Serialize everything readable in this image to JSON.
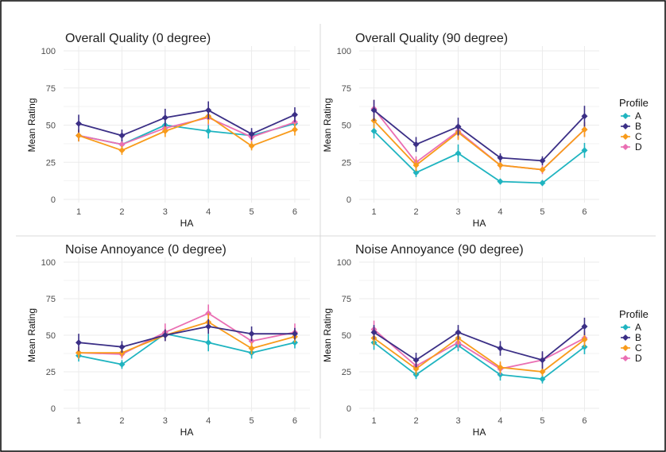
{
  "chart_data": [
    {
      "type": "line",
      "title": "Overall Quality (0 degree)",
      "xlabel": "HA",
      "ylabel": "Mean Rating",
      "x": [
        1,
        2,
        3,
        4,
        5,
        6
      ],
      "ylim": [
        0,
        100
      ],
      "yticks": [
        0,
        25,
        50,
        75,
        100
      ],
      "grid": true,
      "series": [
        {
          "name": "A",
          "values": [
            43,
            37,
            50,
            46,
            43,
            51
          ],
          "err": [
            4,
            3,
            4,
            5,
            3,
            4
          ]
        },
        {
          "name": "B",
          "values": [
            51,
            43,
            55,
            60,
            44,
            57
          ],
          "err": [
            6,
            4,
            6,
            6,
            4,
            5
          ]
        },
        {
          "name": "C",
          "values": [
            43,
            33,
            46,
            56,
            36,
            47
          ],
          "err": [
            4,
            3,
            4,
            5,
            3,
            4
          ]
        },
        {
          "name": "D",
          "values": [
            43,
            37,
            48,
            55,
            42,
            52
          ],
          "err": [
            4,
            3,
            4,
            5,
            4,
            4
          ]
        }
      ]
    },
    {
      "type": "line",
      "title": "Overall Quality (90 degree)",
      "xlabel": "HA",
      "ylabel": "Mean Rating",
      "x": [
        1,
        2,
        3,
        4,
        5,
        6
      ],
      "ylim": [
        0,
        100
      ],
      "yticks": [
        0,
        25,
        50,
        75,
        100
      ],
      "grid": true,
      "series": [
        {
          "name": "A",
          "values": [
            46,
            18,
            31,
            12,
            11,
            33
          ],
          "err": [
            5,
            3,
            6,
            2,
            2,
            5
          ]
        },
        {
          "name": "B",
          "values": [
            60,
            37,
            49,
            28,
            26,
            56
          ],
          "err": [
            7,
            5,
            6,
            3,
            3,
            7
          ]
        },
        {
          "name": "C",
          "values": [
            53,
            23,
            45,
            23,
            20,
            47
          ],
          "err": [
            5,
            4,
            5,
            3,
            2,
            5
          ]
        },
        {
          "name": "D",
          "values": [
            61,
            25,
            46,
            23,
            20,
            47
          ],
          "err": [
            6,
            4,
            5,
            3,
            3,
            5
          ]
        }
      ]
    },
    {
      "type": "line",
      "title": "Noise Annoyance (0 degree)",
      "xlabel": "HA",
      "ylabel": "Mean Rating",
      "x": [
        1,
        2,
        3,
        4,
        5,
        6
      ],
      "ylim": [
        0,
        100
      ],
      "yticks": [
        0,
        25,
        50,
        75,
        100
      ],
      "grid": true,
      "series": [
        {
          "name": "A",
          "values": [
            36,
            30,
            51,
            45,
            38,
            45
          ],
          "err": [
            4,
            3,
            4,
            6,
            4,
            4
          ]
        },
        {
          "name": "B",
          "values": [
            45,
            42,
            50,
            56,
            51,
            51
          ],
          "err": [
            6,
            4,
            4,
            5,
            5,
            4
          ]
        },
        {
          "name": "C",
          "values": [
            38,
            38,
            50,
            59,
            41,
            49
          ],
          "err": [
            4,
            3,
            4,
            6,
            4,
            4
          ]
        },
        {
          "name": "D",
          "values": [
            38,
            37,
            52,
            65,
            46,
            52
          ],
          "err": [
            4,
            3,
            6,
            6,
            5,
            6
          ]
        }
      ]
    },
    {
      "type": "line",
      "title": "Noise Annoyance (90 degree)",
      "xlabel": "HA",
      "ylabel": "Mean Rating",
      "x": [
        1,
        2,
        3,
        4,
        5,
        6
      ],
      "ylim": [
        0,
        100
      ],
      "yticks": [
        0,
        25,
        50,
        75,
        100
      ],
      "grid": true,
      "series": [
        {
          "name": "A",
          "values": [
            45,
            23,
            43,
            23,
            20,
            42
          ],
          "err": [
            5,
            3,
            4,
            4,
            3,
            5
          ]
        },
        {
          "name": "B",
          "values": [
            52,
            33,
            52,
            41,
            33,
            56
          ],
          "err": [
            5,
            5,
            5,
            5,
            6,
            6
          ]
        },
        {
          "name": "C",
          "values": [
            48,
            27,
            48,
            28,
            25,
            47
          ],
          "err": [
            5,
            4,
            4,
            4,
            3,
            5
          ]
        },
        {
          "name": "D",
          "values": [
            54,
            29,
            45,
            27,
            33,
            48
          ],
          "err": [
            6,
            4,
            4,
            4,
            5,
            5
          ]
        }
      ]
    }
  ],
  "legend": {
    "title": "Profile",
    "placement": "right",
    "items": [
      {
        "label": "A",
        "color": "#1fb4c0"
      },
      {
        "label": "B",
        "color": "#3b2f86"
      },
      {
        "label": "C",
        "color": "#f89b1b"
      },
      {
        "label": "D",
        "color": "#ea6fb3"
      }
    ]
  }
}
